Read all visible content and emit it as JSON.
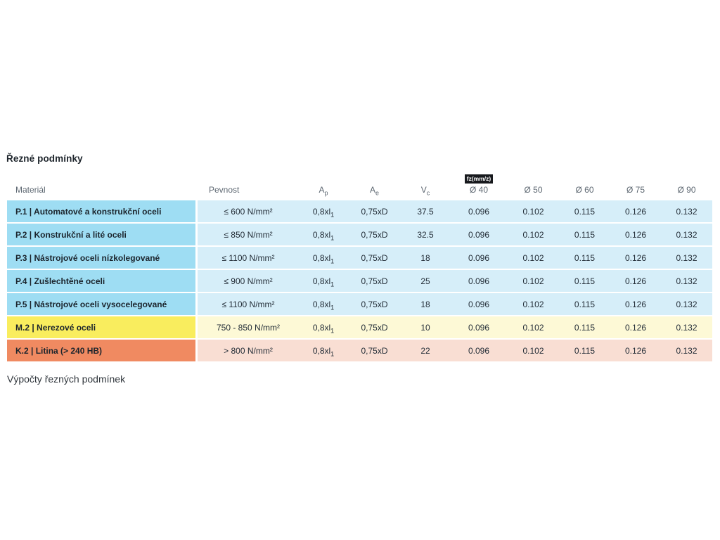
{
  "page": {
    "title": "Řezné podmínky",
    "footer_heading": "Výpočty řezných podmínek"
  },
  "table": {
    "headers": {
      "material": "Materiál",
      "pevnost": "Pevnost",
      "ap": {
        "base": "A",
        "sub": "p"
      },
      "ae": {
        "base": "A",
        "sub": "e"
      },
      "vc": {
        "base": "V",
        "sub": "c"
      },
      "fz_badge": "fz(mm/z)",
      "diameters": [
        "Ø 40",
        "Ø 50",
        "Ø 60",
        "Ø 75",
        "Ø 90"
      ]
    },
    "rows": [
      {
        "material": "P.1 | Automatové a konstrukční oceli",
        "pevnost": "≤ 600 N/mm²",
        "ap_base": "0,8xl",
        "ap_sub": "1",
        "ae": "0,75xD",
        "vc": "37.5",
        "fz": [
          "0.096",
          "0.102",
          "0.115",
          "0.126",
          "0.132"
        ],
        "color": "blue"
      },
      {
        "material": "P.2 | Konstrukční a lité oceli",
        "pevnost": "≤ 850 N/mm²",
        "ap_base": "0,8xl",
        "ap_sub": "1",
        "ae": "0,75xD",
        "vc": "32.5",
        "fz": [
          "0.096",
          "0.102",
          "0.115",
          "0.126",
          "0.132"
        ],
        "color": "blue"
      },
      {
        "material": "P.3 | Nástrojové oceli nízkolegované",
        "pevnost": "≤ 1100 N/mm²",
        "ap_base": "0,8xl",
        "ap_sub": "1",
        "ae": "0,75xD",
        "vc": "18",
        "fz": [
          "0.096",
          "0.102",
          "0.115",
          "0.126",
          "0.132"
        ],
        "color": "blue"
      },
      {
        "material": "P.4 | Zušlechtěné oceli",
        "pevnost": "≤ 900 N/mm²",
        "ap_base": "0,8xl",
        "ap_sub": "1",
        "ae": "0,75xD",
        "vc": "25",
        "fz": [
          "0.096",
          "0.102",
          "0.115",
          "0.126",
          "0.132"
        ],
        "color": "blue"
      },
      {
        "material": "P.5 | Nástrojové oceli vysocelegované",
        "pevnost": "≤ 1100 N/mm²",
        "ap_base": "0,8xl",
        "ap_sub": "1",
        "ae": "0,75xD",
        "vc": "18",
        "fz": [
          "0.096",
          "0.102",
          "0.115",
          "0.126",
          "0.132"
        ],
        "color": "blue"
      },
      {
        "material": "M.2 | Nerezové oceli",
        "pevnost": "750 - 850 N/mm²",
        "ap_base": "0,8xl",
        "ap_sub": "1",
        "ae": "0,75xD",
        "vc": "10",
        "fz": [
          "0.096",
          "0.102",
          "0.115",
          "0.126",
          "0.132"
        ],
        "color": "yellow"
      },
      {
        "material": "K.2 | Litina (> 240 HB)",
        "pevnost": "> 800 N/mm²",
        "ap_base": "0,8xl",
        "ap_sub": "1",
        "ae": "0,75xD",
        "vc": "22",
        "fz": [
          "0.096",
          "0.102",
          "0.115",
          "0.126",
          "0.132"
        ],
        "color": "orange"
      }
    ],
    "colors": {
      "blue_label": "#9eddf3",
      "blue_cell": "#d6eef9",
      "yellow_label": "#f9ed5e",
      "yellow_cell": "#fdf9d6",
      "orange_label": "#f08a61",
      "orange_cell": "#f9ded3",
      "badge_bg": "#17191d",
      "badge_text": "#ffffff"
    }
  }
}
